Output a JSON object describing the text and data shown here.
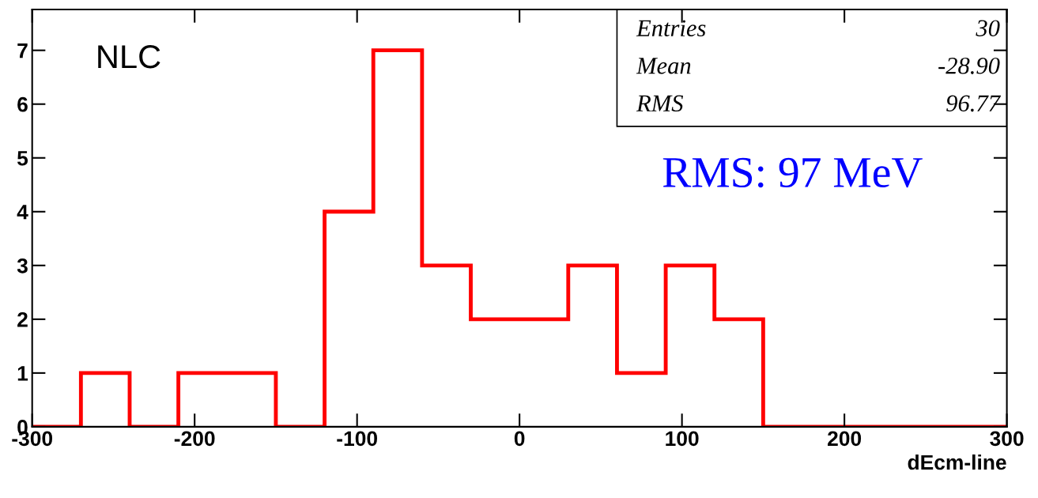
{
  "chart_data": {
    "type": "histogram",
    "bins": [
      -300,
      -270,
      -240,
      -210,
      -180,
      -150,
      -120,
      -90,
      -60,
      -30,
      0,
      30,
      60,
      90,
      120,
      150,
      180,
      210,
      240,
      270,
      300
    ],
    "values": [
      0,
      1,
      0,
      1,
      1,
      0,
      4,
      7,
      3,
      2,
      2,
      3,
      1,
      3,
      2,
      0,
      0,
      0,
      0,
      0
    ],
    "color": "#ff0000",
    "xlabel": "dEcm-line",
    "xlim": [
      -300,
      300
    ],
    "xticks": [
      -300,
      -200,
      -100,
      0,
      100,
      200,
      300
    ],
    "ylim": [
      0,
      7.76
    ],
    "yticks": [
      0,
      1,
      2,
      3,
      4,
      5,
      6,
      7
    ],
    "grid": false,
    "legend": false,
    "annotations": [
      "NLC",
      "RMS: 97 MeV",
      "Entries",
      "30",
      "Mean",
      "-28.90",
      "RMS",
      "96.77"
    ]
  }
}
